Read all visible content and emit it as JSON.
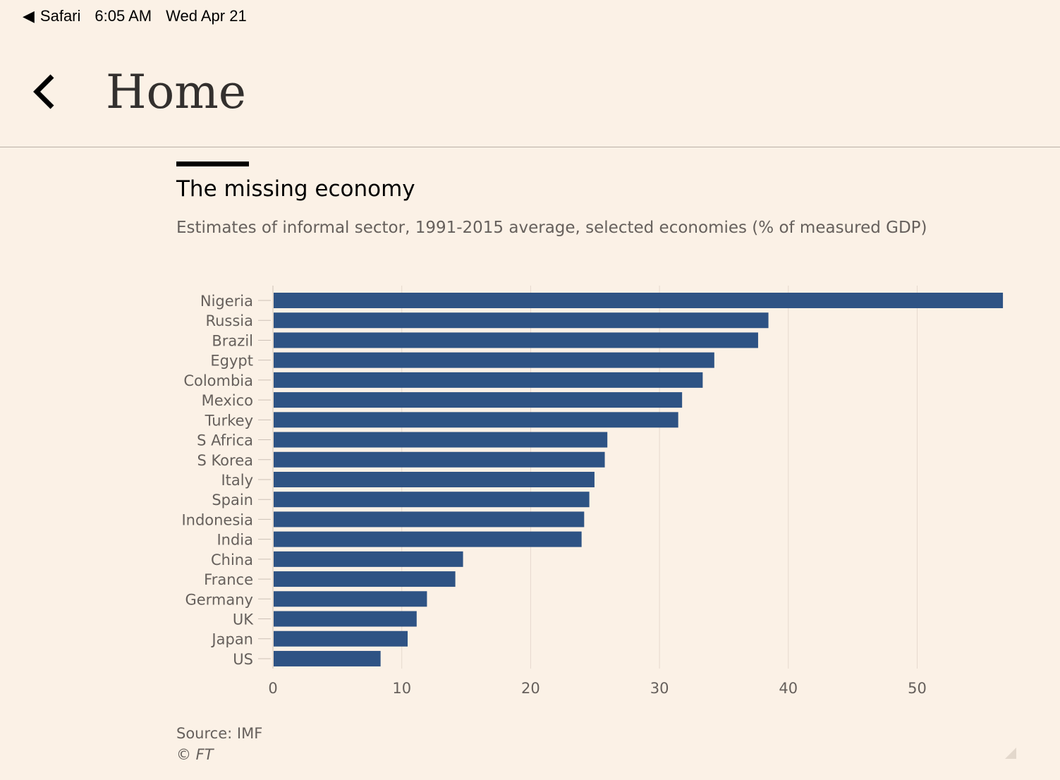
{
  "status_bar": {
    "back_app": "Safari",
    "time": "6:05 AM",
    "date": "Wed Apr 21"
  },
  "nav": {
    "title": "Home"
  },
  "chart_data": {
    "type": "bar",
    "orientation": "horizontal",
    "title": "The missing economy",
    "subtitle": "Estimates of informal sector, 1991-2015 average, selected economies (% of measured GDP)",
    "categories": [
      "Nigeria",
      "Russia",
      "Brazil",
      "Egypt",
      "Colombia",
      "Mexico",
      "Turkey",
      "S Africa",
      "S Korea",
      "Italy",
      "Spain",
      "Indonesia",
      "India",
      "China",
      "France",
      "Germany",
      "UK",
      "Japan",
      "US"
    ],
    "values": [
      56.6,
      38.4,
      37.6,
      34.2,
      33.3,
      31.7,
      31.4,
      25.9,
      25.7,
      24.9,
      24.5,
      24.1,
      23.9,
      14.7,
      14.1,
      11.9,
      11.1,
      10.4,
      8.3
    ],
    "xticks": [
      "0",
      "10",
      "20",
      "30",
      "40",
      "50"
    ],
    "xlim": [
      0,
      57
    ],
    "grid": true,
    "bar_color": "#2e5384",
    "source": "Source: IMF",
    "copyright": "© FT"
  }
}
